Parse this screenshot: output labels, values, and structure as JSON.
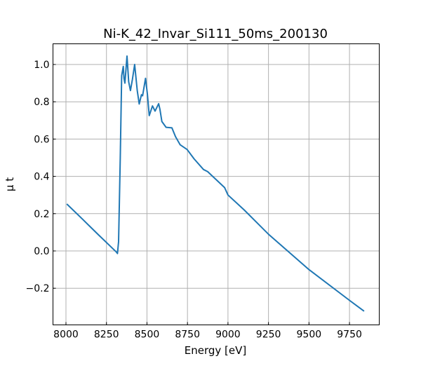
{
  "chart_data": {
    "type": "line",
    "title": "Ni-K_42_Invar_Si111_50ms_200130",
    "xlabel": "Energy [eV]",
    "ylabel": "μ t",
    "xlim": [
      7920,
      9940
    ],
    "ylim": [
      -0.4,
      1.11
    ],
    "xticks": [
      8000,
      8250,
      8500,
      8750,
      9000,
      9250,
      9500,
      9750
    ],
    "xtick_labels": [
      "8000",
      "8250",
      "8500",
      "8750",
      "9000",
      "9250",
      "9500",
      "9750"
    ],
    "yticks": [
      -0.2,
      0.0,
      0.2,
      0.4,
      0.6,
      0.8,
      1.0
    ],
    "ytick_labels": [
      "−0.2",
      "0.0",
      "0.2",
      "0.4",
      "0.6",
      "0.8",
      "1.0"
    ],
    "grid": true,
    "color": "#1f77b4",
    "series": [
      {
        "name": "mu_t",
        "x": [
          8005,
          8100,
          8200,
          8280,
          8310,
          8318,
          8325,
          8335,
          8344,
          8354,
          8358,
          8364,
          8377,
          8387,
          8398,
          8410,
          8424,
          8440,
          8452,
          8466,
          8473,
          8491,
          8503,
          8514,
          8534,
          8550,
          8572,
          8580,
          8592,
          8618,
          8654,
          8676,
          8705,
          8748,
          8791,
          8849,
          8875,
          8930,
          8979,
          9000,
          9100,
          9250,
          9500,
          9750,
          9840
        ],
        "y": [
          0.252,
          0.172,
          0.087,
          0.02,
          -0.005,
          -0.014,
          0.05,
          0.5,
          0.94,
          0.99,
          0.926,
          0.9,
          1.045,
          0.907,
          0.86,
          0.92,
          1.0,
          0.86,
          0.788,
          0.838,
          0.832,
          0.926,
          0.84,
          0.726,
          0.778,
          0.75,
          0.79,
          0.76,
          0.694,
          0.663,
          0.66,
          0.613,
          0.569,
          0.544,
          0.494,
          0.437,
          0.425,
          0.38,
          0.34,
          0.3,
          0.22,
          0.09,
          -0.1,
          -0.265,
          -0.323
        ]
      }
    ]
  }
}
